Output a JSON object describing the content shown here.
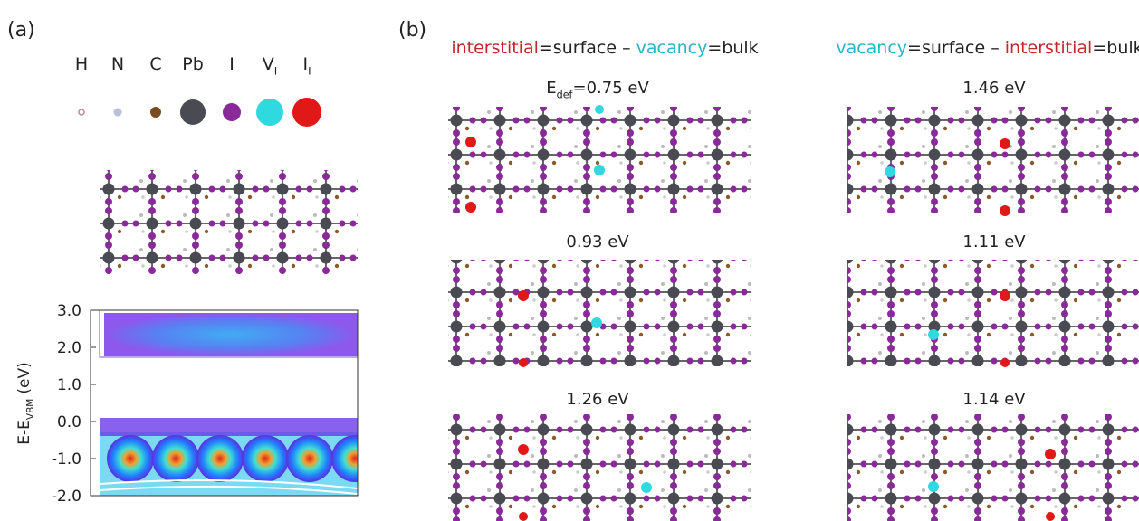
{
  "panel_a": {
    "label": "(a)",
    "legend": [
      {
        "base": "H"
      },
      {
        "base": "N"
      },
      {
        "base": "C"
      },
      {
        "base": "Pb"
      },
      {
        "base": "I"
      },
      {
        "base": "V",
        "sub": "I"
      },
      {
        "base": "I",
        "sub": "I"
      }
    ],
    "plot": {
      "ylabel": {
        "base": "E-E",
        "sub": "VBM",
        "rest": "(eV)"
      },
      "ylim": [
        -2,
        3
      ],
      "yticks": [
        {
          "value": 3,
          "label": "3.0"
        },
        {
          "value": 2,
          "label": "2.0"
        },
        {
          "value": 1,
          "label": "1.0"
        },
        {
          "value": 0,
          "label": "0.0"
        },
        {
          "value": -1,
          "label": "-1.0"
        },
        {
          "value": -2,
          "label": "-2.0"
        }
      ]
    }
  },
  "panel_b": {
    "label": "(b)",
    "columns": [
      {
        "header": [
          {
            "text": "interstitial",
            "color": "#c0282d"
          },
          {
            "text": "=surface – ",
            "color": "#222222"
          },
          {
            "text": "vacancy",
            "color": "#27b4c9"
          },
          {
            "text": "=bulk",
            "color": "#222222"
          }
        ],
        "energies": [
          {
            "base": "E",
            "sub": "def",
            "rest": "=0.75 eV"
          },
          {
            "text": "0.93 eV"
          },
          {
            "text": "1.26 eV"
          }
        ]
      },
      {
        "header": [
          {
            "text": "vacancy",
            "color": "#27b4c9"
          },
          {
            "text": "=surface – ",
            "color": "#222222"
          },
          {
            "text": "interstitial",
            "color": "#c0282d"
          },
          {
            "text": "=bulk",
            "color": "#222222"
          }
        ],
        "energies": [
          {
            "text": "1.46 eV"
          },
          {
            "text": "1.11 eV"
          },
          {
            "text": "1.14 eV"
          }
        ]
      }
    ]
  }
}
